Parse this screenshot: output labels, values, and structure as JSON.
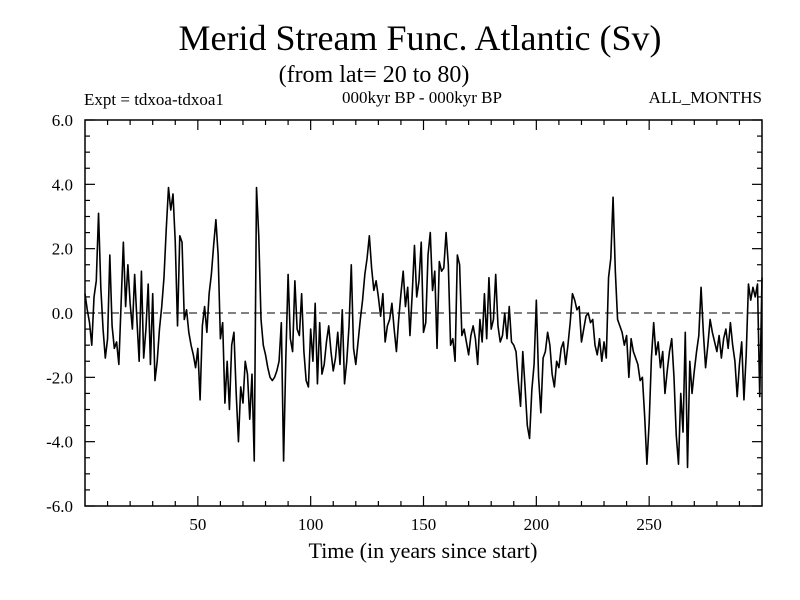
{
  "chart_data": {
    "type": "line",
    "title": "Merid Stream Func. Atlantic (Sv)",
    "subtitle": "(from lat= 20 to 80)",
    "experiment": "Expt = tdxoa-tdxoa1",
    "period": "000kyr BP - 000kyr BP",
    "months": "ALL_MONTHS",
    "xlabel": "Time (in years since start)",
    "ylabel": "",
    "xlim": [
      0,
      300
    ],
    "ylim": [
      -6,
      6
    ],
    "x_ticks": [
      50,
      100,
      150,
      200,
      250
    ],
    "x_tick_labels": [
      "50",
      "100",
      "150",
      "200",
      "250"
    ],
    "y_ticks": [
      -6,
      -4,
      -2,
      0,
      2,
      4,
      6
    ],
    "y_tick_labels": [
      "-6.0",
      "-4.0",
      "-2.0",
      "0.0",
      "2.0",
      "4.0",
      "6.0"
    ],
    "zero_line": "dashed",
    "line_color": "#000000",
    "series": [
      {
        "x": [
          0,
          1,
          2,
          3,
          4,
          5,
          6,
          7,
          8,
          9,
          10,
          11,
          12,
          13,
          14,
          15,
          16,
          17,
          18,
          19,
          20,
          21,
          22,
          23,
          24,
          25,
          26,
          27,
          28,
          29,
          30,
          31,
          32,
          33,
          34,
          35,
          36,
          37,
          38,
          39,
          40,
          41,
          42,
          43,
          44,
          45,
          46,
          47,
          48,
          49,
          50,
          51,
          52,
          53,
          54,
          55,
          56,
          57,
          58,
          59,
          60,
          61,
          62,
          63,
          64,
          65,
          66,
          67,
          68,
          69,
          70,
          71,
          72,
          73,
          74,
          75,
          76,
          77,
          78,
          79,
          80,
          81,
          82,
          83,
          84,
          85,
          86,
          87,
          88,
          89,
          90,
          91,
          92,
          93,
          94,
          95,
          96,
          97,
          98,
          99,
          100,
          101,
          102,
          103,
          104,
          105,
          106,
          107,
          108,
          109,
          110,
          111,
          112,
          113,
          114,
          115,
          116,
          117,
          118,
          119,
          120,
          121,
          122,
          123,
          124,
          125,
          126,
          127,
          128,
          129,
          130,
          131,
          132,
          133,
          134,
          135,
          136,
          137,
          138,
          139,
          140,
          141,
          142,
          143,
          144,
          145,
          146,
          147,
          148,
          149,
          150,
          151,
          152,
          153,
          154,
          155,
          156,
          157,
          158,
          159,
          160,
          161,
          162,
          163,
          164,
          165,
          166,
          167,
          168,
          169,
          170,
          171,
          172,
          173,
          174,
          175,
          176,
          177,
          178,
          179,
          180,
          181,
          182,
          183,
          184,
          185,
          186,
          187,
          188,
          189,
          190,
          191,
          192,
          193,
          194,
          195,
          196,
          197,
          198,
          199,
          200,
          201,
          202,
          203,
          204,
          205,
          206,
          207,
          208,
          209,
          210,
          211,
          212,
          213,
          214,
          215,
          216,
          217,
          218,
          219,
          220,
          221,
          222,
          223,
          224,
          225,
          226,
          227,
          228,
          229,
          230,
          231,
          232,
          233,
          234,
          235,
          236,
          237,
          238,
          239,
          240,
          241,
          242,
          243,
          244,
          245,
          246,
          247,
          248,
          249,
          250,
          251,
          252,
          253,
          254,
          255,
          256,
          257,
          258,
          259,
          260,
          261,
          262,
          263,
          264,
          265,
          266,
          267,
          268,
          269,
          270,
          271,
          272,
          273,
          274,
          275,
          276,
          277,
          278,
          279,
          280,
          281,
          282,
          283,
          284,
          285,
          286,
          287,
          288,
          289,
          290,
          291,
          292,
          293,
          294,
          295,
          296,
          297,
          298,
          299,
          300
        ],
        "values": [
          0.6,
          0.1,
          -0.3,
          -1.0,
          0.5,
          1.0,
          3.1,
          0.8,
          -0.5,
          -1.4,
          -0.8,
          1.8,
          -0.4,
          -1.1,
          -0.9,
          -1.6,
          0.3,
          2.2,
          0.2,
          1.5,
          0.3,
          -0.5,
          1.2,
          -0.2,
          -1.5,
          1.3,
          -1.4,
          -0.5,
          0.9,
          -1.6,
          0.6,
          -2.1,
          -1.5,
          -0.5,
          0.2,
          1.1,
          2.6,
          3.9,
          3.2,
          3.7,
          2.2,
          -0.4,
          2.4,
          2.2,
          -0.2,
          0.1,
          -0.6,
          -1.0,
          -1.3,
          -1.7,
          -1.1,
          -2.7,
          -0.4,
          0.2,
          -0.6,
          0.6,
          1.2,
          2.1,
          2.9,
          1.8,
          -0.8,
          -0.3,
          -2.8,
          -1.5,
          -3.0,
          -1.0,
          -0.6,
          -2.5,
          -4.0,
          -2.3,
          -2.8,
          -1.5,
          -1.9,
          -3.3,
          -1.9,
          -4.6,
          3.9,
          2.4,
          -0.2,
          -1.0,
          -1.3,
          -1.7,
          -2.0,
          -2.1,
          -2.0,
          -1.8,
          -1.5,
          -0.3,
          -4.6,
          -1.4,
          1.2,
          -0.8,
          -1.2,
          1.0,
          -0.5,
          -0.7,
          0.6,
          -1.2,
          -2.1,
          -2.3,
          -0.5,
          -1.5,
          0.3,
          -2.2,
          -0.3,
          -1.9,
          -1.6,
          -0.9,
          -0.4,
          -1.2,
          -1.8,
          -1.4,
          -0.6,
          -1.6,
          0.1,
          -2.2,
          -1.5,
          -0.4,
          1.5,
          -1.1,
          -1.6,
          -0.9,
          -0.2,
          0.4,
          1.2,
          1.7,
          2.4,
          1.4,
          0.7,
          1.0,
          0.5,
          -0.1,
          0.6,
          -0.9,
          -0.4,
          -0.2,
          0.3,
          -0.5,
          -1.2,
          -0.2,
          0.6,
          1.3,
          0.2,
          0.8,
          -0.7,
          0.6,
          2.1,
          0.5,
          1.0,
          2.2,
          -0.6,
          -0.3,
          1.8,
          2.5,
          0.7,
          1.3,
          -1.1,
          1.6,
          1.3,
          1.4,
          2.5,
          1.5,
          -1.0,
          -0.8,
          -1.5,
          1.8,
          1.5,
          -0.7,
          -0.5,
          -0.9,
          -1.3,
          -0.7,
          -0.4,
          -0.8,
          -1.6,
          -0.2,
          -0.9,
          0.6,
          -0.8,
          1.1,
          -0.5,
          -0.2,
          1.2,
          -0.4,
          -0.9,
          -0.7,
          0.0,
          -0.8,
          0.2,
          -0.9,
          -1.0,
          -1.2,
          -2.1,
          -2.9,
          -1.2,
          -2.3,
          -3.5,
          -3.9,
          -2.4,
          -1.6,
          0.4,
          -2.0,
          -3.1,
          -1.4,
          -1.2,
          -0.6,
          -1.0,
          -1.9,
          -2.3,
          -1.5,
          -1.7,
          -1.1,
          -0.9,
          -1.6,
          -1.0,
          -0.3,
          0.6,
          0.4,
          0.1,
          0.2,
          -0.9,
          -0.5,
          -0.1,
          0.0,
          -0.3,
          -0.2,
          -1.0,
          -1.3,
          -0.8,
          -1.5,
          -0.9,
          -1.4,
          1.1,
          1.7,
          3.6,
          1.3,
          -0.2,
          -0.4,
          -0.6,
          -1.0,
          -0.7,
          -2.0,
          -0.8,
          -1.2,
          -1.4,
          -1.6,
          -2.1,
          -2.0,
          -3.2,
          -4.7,
          -3.4,
          -1.4,
          -0.3,
          -1.3,
          -0.9,
          -1.7,
          -1.2,
          -2.5,
          -1.8,
          -1.2,
          -0.8,
          -2.0,
          -3.8,
          -4.7,
          -2.5,
          -3.7,
          -0.6,
          -4.8,
          -1.5,
          -2.5,
          -1.8,
          -1.2,
          -0.7,
          0.8,
          -0.6,
          -1.7,
          -1.0,
          -0.2,
          -0.6,
          -0.9,
          -1.2,
          -0.7,
          -1.4,
          -0.8,
          -0.5,
          -1.1,
          -0.3,
          -1.0,
          -1.5,
          -2.6,
          -1.6,
          -0.9,
          -2.7,
          -1.3,
          0.9,
          0.4,
          0.8,
          0.5,
          0.9,
          -2.6,
          1.1
        ]
      }
    ]
  }
}
